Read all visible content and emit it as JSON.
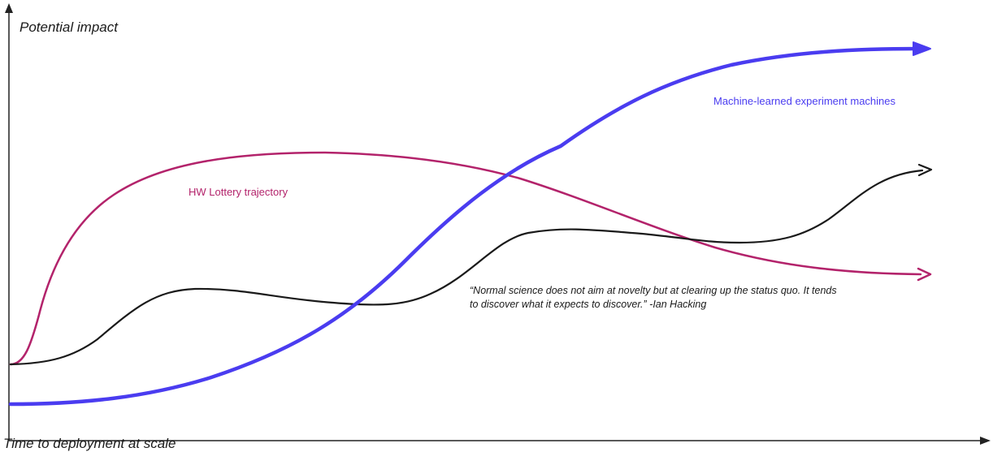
{
  "axes": {
    "y_label": "Potential impact",
    "x_label": "Time to deployment at scale"
  },
  "curves": [
    {
      "id": "hw-lottery",
      "label": "HW Lottery trajectory",
      "color": "#b3236b"
    },
    {
      "id": "ml-machines",
      "label": "Machine-learned experiment machines",
      "color": "#4a3cf0"
    },
    {
      "id": "normal-science",
      "label": "",
      "color": "#1a1a1a"
    }
  ],
  "quote": {
    "text": "“Normal science does not aim at novelty but at clearing up the status quo. It tends to discover what it expects to discover.”  -Ian Hacking"
  }
}
